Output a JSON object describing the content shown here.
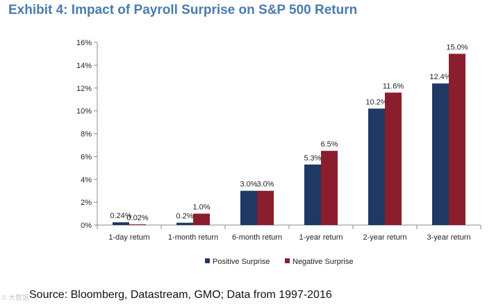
{
  "title": "Exhibit 4: Impact of Payroll Surprise on S&P 500 Return",
  "source": "Source:  Bloomberg, Datastream, GMO; Data from 1997-2016",
  "watermark": "© 大数据",
  "chart_data": {
    "type": "bar",
    "title": "Exhibit 4: Impact of Payroll Surprise on S&P 500 Return",
    "xlabel": "",
    "ylabel": "",
    "ylim": [
      0,
      16
    ],
    "yticks": [
      0,
      2,
      4,
      6,
      8,
      10,
      12,
      14,
      16
    ],
    "ytick_labels": [
      "0%",
      "2%",
      "4%",
      "6%",
      "8%",
      "10%",
      "12%",
      "14%",
      "16%"
    ],
    "grid": false,
    "legend_position": "bottom",
    "categories": [
      "1-day return",
      "1-month return",
      "6-month return",
      "1-year return",
      "2-year return",
      "3-year return"
    ],
    "series": [
      {
        "name": "Positive Surprise",
        "color": "#1f3864",
        "values": [
          0.24,
          0.2,
          3.0,
          5.3,
          10.2,
          12.4
        ],
        "labels": [
          "0.24%",
          "0.2%",
          "3.0%",
          "5.3%",
          "10.2%",
          "12.4%"
        ]
      },
      {
        "name": "Negative Surprise",
        "color": "#8b1e2c",
        "values": [
          0.02,
          1.0,
          3.0,
          6.5,
          11.6,
          15.0
        ],
        "labels": [
          "0.02%",
          "1.0%",
          "3.0%",
          "6.5%",
          "11.6%",
          "15.0%"
        ]
      }
    ]
  }
}
